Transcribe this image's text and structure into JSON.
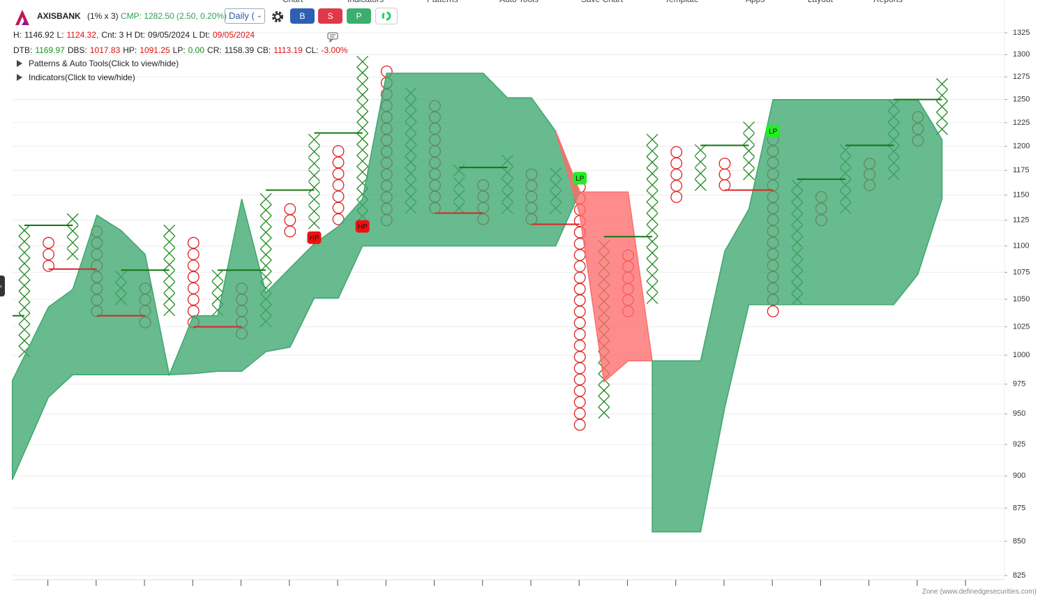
{
  "menu": [
    "Chart",
    "Indicators",
    "Patterns",
    "Auto Tools",
    "Save Chart",
    "Template",
    "Apps",
    "Layout",
    "Reports"
  ],
  "header": {
    "symbol": "AXISBANK",
    "box": "(1% x 3)",
    "cmp": "CMP: 1282.50 (2.50, 0.20%)",
    "interval": "Daily (",
    "buttons": [
      "B",
      "S",
      "P"
    ]
  },
  "stats": [
    [
      {
        "text": "H:",
        "color": "#222222"
      },
      {
        "text": "1146.92",
        "color": "#222222"
      },
      {
        "text": "L:",
        "color": "#222222"
      },
      {
        "text": "1124.32,",
        "color": "#dd1111"
      },
      {
        "text": "Cnt: 3 H Dt:",
        "color": "#222222"
      },
      {
        "text": "09/05/2024",
        "color": "#222222"
      },
      {
        "text": "L Dt:",
        "color": "#222222"
      },
      {
        "text": "09/05/2024",
        "color": "#dd1111"
      }
    ],
    [
      {
        "text": "DTB:",
        "color": "#222222"
      },
      {
        "text": "1169.97",
        "color": "#1a8f1a"
      },
      {
        "text": "DBS:",
        "color": "#222222"
      },
      {
        "text": "1017.83",
        "color": "#dd1111"
      },
      {
        "text": "HP:",
        "color": "#222222"
      },
      {
        "text": "1091.25",
        "color": "#dd1111"
      },
      {
        "text": "LP:",
        "color": "#222222"
      },
      {
        "text": "0.00",
        "color": "#1a8f1a"
      },
      {
        "text": "CR:",
        "color": "#222222"
      },
      {
        "text": "1158.39",
        "color": "#222222"
      },
      {
        "text": "CB:",
        "color": "#222222"
      },
      {
        "text": "1113.19",
        "color": "#dd1111"
      },
      {
        "text": "CL:",
        "color": "#222222"
      },
      {
        "text": "-3.00%",
        "color": "#dd1111"
      }
    ]
  ],
  "toggles": [
    "Patterns & Auto Tools(Click to view/hide)",
    "Indicators(Click to view/hide)"
  ],
  "footer": "Zone (www.definedgesecurities.com)",
  "chart_data": {
    "type": "point-and-figure",
    "log_y": true,
    "grid": true,
    "ylim": [
      825,
      1325
    ],
    "yticks": [
      825,
      850,
      875,
      900,
      925,
      950,
      975,
      1000,
      1025,
      1050,
      1075,
      1100,
      1125,
      1150,
      1175,
      1200,
      1225,
      1250,
      1275,
      1300,
      1325
    ],
    "x_color": "#1e8a1e",
    "o_color": "#e02020",
    "columns": [
      {
        "type": "X",
        "high": 1115,
        "low": 1003,
        "boxes": 12
      },
      {
        "type": "O",
        "high": 1103,
        "low": 1081,
        "boxes": 3
      },
      {
        "type": "X",
        "high": 1126,
        "low": 1092,
        "boxes": 4
      },
      {
        "type": "O",
        "high": 1114,
        "low": 1039,
        "boxes": 8
      },
      {
        "type": "X",
        "high": 1071,
        "low": 1050,
        "boxes": 3
      },
      {
        "type": "O",
        "high": 1060,
        "low": 1029,
        "boxes": 4
      },
      {
        "type": "X",
        "high": 1115,
        "low": 1040,
        "boxes": 8
      },
      {
        "type": "O",
        "high": 1103,
        "low": 1029,
        "boxes": 8
      },
      {
        "type": "X",
        "high": 1072,
        "low": 1040,
        "boxes": 4
      },
      {
        "type": "O",
        "high": 1060,
        "low": 1019,
        "boxes": 5
      },
      {
        "type": "X",
        "high": 1146,
        "low": 1030,
        "boxes": 12
      },
      {
        "type": "O",
        "high": 1136,
        "low": 1114,
        "boxes": 3
      },
      {
        "type": "X",
        "high": 1207,
        "low": 1122,
        "boxes": 8
      },
      {
        "type": "O",
        "high": 1195,
        "low": 1126,
        "boxes": 7
      },
      {
        "type": "X",
        "high": 1292,
        "low": 1129,
        "boxes": 15
      },
      {
        "type": "O",
        "high": 1281,
        "low": 1125,
        "boxes": 14
      },
      {
        "type": "X",
        "high": 1257,
        "low": 1137,
        "boxes": 11
      },
      {
        "type": "O",
        "high": 1243,
        "low": 1137,
        "boxes": 10
      },
      {
        "type": "X",
        "high": 1175,
        "low": 1137,
        "boxes": 4
      },
      {
        "type": "O",
        "high": 1160,
        "low": 1126,
        "boxes": 4
      },
      {
        "type": "X",
        "high": 1185,
        "low": 1137,
        "boxes": 5
      },
      {
        "type": "O",
        "high": 1171,
        "low": 1126,
        "boxes": 5
      },
      {
        "type": "X",
        "high": 1172,
        "low": 1137,
        "boxes": 4
      },
      {
        "type": "O",
        "high": 1158,
        "low": 941,
        "boxes": 22
      },
      {
        "type": "X",
        "high": 1100,
        "low": 951,
        "boxes": 16
      },
      {
        "type": "O",
        "high": 1091,
        "low": 1039,
        "boxes": 6
      },
      {
        "type": "X",
        "high": 1207,
        "low": 1051,
        "boxes": 15
      },
      {
        "type": "O",
        "high": 1194,
        "low": 1148,
        "boxes": 5
      },
      {
        "type": "X",
        "high": 1196,
        "low": 1160,
        "boxes": 4
      },
      {
        "type": "O",
        "high": 1182,
        "low": 1160,
        "boxes": 3
      },
      {
        "type": "X",
        "high": 1220,
        "low": 1171,
        "boxes": 5
      },
      {
        "type": "O",
        "high": 1207,
        "low": 1039,
        "boxes": 16
      },
      {
        "type": "X",
        "high": 1160,
        "low": 1050,
        "boxes": 11
      },
      {
        "type": "O",
        "high": 1148,
        "low": 1125,
        "boxes": 3
      },
      {
        "type": "X",
        "high": 1196,
        "low": 1137,
        "boxes": 6
      },
      {
        "type": "O",
        "high": 1182,
        "low": 1160,
        "boxes": 3
      },
      {
        "type": "X",
        "high": 1244,
        "low": 1171,
        "boxes": 7
      },
      {
        "type": "O",
        "high": 1231,
        "low": 1206,
        "boxes": 3
      },
      {
        "type": "X",
        "high": 1267,
        "low": 1218,
        "boxes": 5
      }
    ],
    "zones": [
      {
        "color": "#3ea76f",
        "x": [
          -0.5,
          1,
          2,
          3,
          4,
          5,
          6,
          7,
          8,
          9,
          10,
          11,
          12,
          13,
          14,
          15,
          19,
          20,
          21,
          22,
          23
        ],
        "upper": [
          978,
          1043,
          1059,
          1130,
          1115,
          1092,
          983,
          1035,
          1035,
          1146,
          1056,
          1079,
          1102,
          1119,
          1146,
          1279,
          1279,
          1252,
          1252,
          1216,
          1153
        ],
        "lower": [
          897,
          964,
          983,
          983,
          983,
          983,
          983,
          984,
          986,
          986,
          1003,
          1007,
          1051,
          1051,
          1100,
          1100,
          1100,
          1100,
          1100,
          1100,
          1153
        ]
      },
      {
        "color": "#ff6b6b",
        "x": [
          22,
          23,
          24,
          25,
          26
        ],
        "upper": [
          1216,
          1153,
          1153,
          1153,
          995
        ],
        "lower": [
          1216,
          1130,
          977,
          995,
          995
        ]
      },
      {
        "color": "#3ea76f",
        "x": [
          26,
          28,
          29,
          30,
          31,
          36,
          37,
          38
        ],
        "upper": [
          995,
          995,
          1095,
          1136,
          1250,
          1250,
          1250,
          1207
        ],
        "lower": [
          857,
          857,
          955,
          1045,
          1045,
          1045,
          1073,
          1146
        ]
      }
    ],
    "levels": [
      {
        "color": "#117711",
        "from": -0.5,
        "to": 0,
        "value": 1035
      },
      {
        "color": "#117711",
        "from": 0,
        "to": 2,
        "value": 1120
      },
      {
        "color": "#117711",
        "from": 4,
        "to": 6,
        "value": 1077
      },
      {
        "color": "#117711",
        "from": 8,
        "to": 10,
        "value": 1077
      },
      {
        "color": "#117711",
        "from": 10,
        "to": 12,
        "value": 1155
      },
      {
        "color": "#117711",
        "from": 12,
        "to": 14,
        "value": 1214
      },
      {
        "color": "#117711",
        "from": 18,
        "to": 20,
        "value": 1178
      },
      {
        "color": "#117711",
        "from": 24,
        "to": 26,
        "value": 1109
      },
      {
        "color": "#117711",
        "from": 28,
        "to": 30,
        "value": 1201
      },
      {
        "color": "#117711",
        "from": 32,
        "to": 34,
        "value": 1166
      },
      {
        "color": "#117711",
        "from": 34,
        "to": 36,
        "value": 1201
      },
      {
        "color": "#117711",
        "from": 36,
        "to": 38,
        "value": 1250
      },
      {
        "color": "#dd2222",
        "from": 1,
        "to": 3,
        "value": 1078
      },
      {
        "color": "#dd2222",
        "from": 3,
        "to": 5,
        "value": 1035
      },
      {
        "color": "#dd2222",
        "from": 7,
        "to": 9,
        "value": 1025
      },
      {
        "color": "#dd2222",
        "from": 17,
        "to": 19,
        "value": 1132
      },
      {
        "color": "#dd2222",
        "from": 21,
        "to": 23,
        "value": 1121
      },
      {
        "color": "#dd2222",
        "from": 29,
        "to": 31,
        "value": 1155
      }
    ],
    "tags": [
      {
        "label": "HP",
        "column": 12,
        "value": 1108,
        "color": "#ee1111"
      },
      {
        "label": "HP",
        "column": 14,
        "value": 1119,
        "color": "#ee1111"
      },
      {
        "label": "LP",
        "column": 23,
        "value": 1167,
        "color": "#22ee22"
      },
      {
        "label": "LP",
        "column": 31,
        "value": 1216,
        "color": "#22ee22"
      }
    ]
  }
}
